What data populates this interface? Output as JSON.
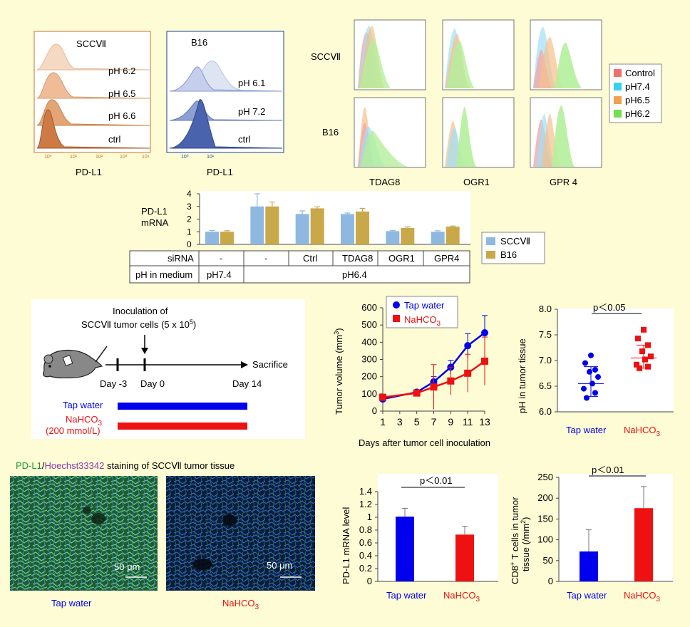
{
  "flow_left": {
    "sccvii": {
      "title": "SCCⅦ",
      "rows": [
        "pH 6.2",
        "pH 6.5",
        "pH 6.6",
        "ctrl"
      ],
      "xlabel": "PD-L1",
      "ticks": [
        "10⁰",
        "10¹",
        "10²",
        "10³",
        "10⁴"
      ]
    },
    "b16": {
      "title": "B16",
      "rows": [
        "pH 6.1",
        "pH 7.2",
        "ctrl"
      ],
      "xlabel": "PD-L1",
      "ticks": [
        "10⁰",
        "10¹"
      ]
    }
  },
  "receptor_flow": {
    "row_labels": [
      "SCCⅦ",
      "B16"
    ],
    "col_labels": [
      "TDAG8",
      "OGR1",
      "GPR 4"
    ],
    "legend": [
      {
        "label": "Control",
        "color": "#f07070"
      },
      {
        "label": "pH7.4",
        "color": "#38d0f0"
      },
      {
        "label": "pH6.5",
        "color": "#f0a050"
      },
      {
        "label": "pH6.2",
        "color": "#70e050"
      }
    ]
  },
  "mrna_chart": {
    "chart_data": {
      "type": "bar",
      "ylabel": "PD-L1 mRNA",
      "ylim": [
        0,
        4
      ],
      "yticks": [
        "0",
        "1",
        "2",
        "3",
        "4"
      ],
      "categories": [
        "-",
        "-",
        "Ctrl",
        "TDAG8",
        "OGR1",
        "GPR4"
      ],
      "series": [
        {
          "name": "SCCⅦ",
          "color": "#8fb8e0",
          "values": [
            1.0,
            3.0,
            2.4,
            2.4,
            1.05,
            1.0
          ],
          "errors": [
            0.1,
            1.0,
            0.25,
            0.08,
            0.05,
            0.08
          ]
        },
        {
          "name": "B16",
          "color": "#c9a84a",
          "values": [
            1.0,
            3.0,
            2.85,
            2.6,
            1.3,
            1.4
          ],
          "errors": [
            0.08,
            0.35,
            0.12,
            0.25,
            0.08,
            0.05
          ]
        }
      ]
    },
    "table": {
      "row1_label": "siRNA",
      "row2_label": "pH in medium",
      "ph74": "pH7.4",
      "ph64": "pH6.4"
    }
  },
  "timeline": {
    "inoculation": "Inoculation of",
    "cells_main": "SCCⅦ tumor cells (5 x 10",
    "cells_sup": "5",
    "cells_end": ")",
    "sacrifice": "Sacrifice",
    "days": [
      "Day -3",
      "Day 0",
      "Day 14"
    ],
    "tap_water": "Tap water",
    "nahco3_main": "NaHCO",
    "nahco3_sub": "3",
    "concentration": "(200 mmol/L)"
  },
  "tumor_chart": {
    "chart_data": {
      "type": "line",
      "x": [
        1,
        5,
        7,
        9,
        11,
        13
      ],
      "xticks": [
        "1",
        "3",
        "5",
        "7",
        "9",
        "11",
        "13"
      ],
      "yticks": [
        "0",
        "100",
        "200",
        "300",
        "400",
        "500",
        "600"
      ],
      "ylim": [
        0,
        600
      ],
      "xlabel": "Days after tumor cell inoculation",
      "ylabel_main": "Tumor volume (mm",
      "ylabel_sup": "3",
      "ylabel_end": ")",
      "series": [
        {
          "name": "Tap water",
          "color": "#0000ee",
          "values": [
            70,
            110,
            170,
            255,
            380,
            455
          ],
          "errors": [
            5,
            10,
            30,
            40,
            70,
            100
          ]
        },
        {
          "name": "NaHCO3",
          "color": "#ee1111",
          "values": [
            80,
            105,
            140,
            175,
            220,
            290
          ],
          "errors": [
            5,
            15,
            130,
            80,
            110,
            140
          ]
        }
      ]
    },
    "legend_tap": "Tap water",
    "legend_nahco3_main": "NaHCO",
    "legend_nahco3_sub": "3"
  },
  "ph_chart": {
    "chart_data": {
      "type": "scatter",
      "ylabel": "pH in tumor tissue",
      "ylim": [
        6.0,
        8.0
      ],
      "yticks": [
        "6.0",
        "6.5",
        "7.0",
        "7.5",
        "8.0"
      ],
      "series": [
        {
          "name": "Tap water",
          "color": "#0000ee",
          "values": [
            6.27,
            6.37,
            6.45,
            6.55,
            6.68,
            6.78,
            6.82,
            6.95,
            7.1
          ],
          "mean": 6.55,
          "sd_upper": 6.88,
          "sd_lower": 6.3
        },
        {
          "name": "NaHCO3",
          "color": "#ee1111",
          "values": [
            6.85,
            6.88,
            6.92,
            7.02,
            7.08,
            7.18,
            7.3,
            7.43,
            7.6
          ],
          "mean": 7.05,
          "sd_upper": 7.3,
          "sd_lower": 6.85
        }
      ]
    },
    "pvalue": "p＜0.05",
    "label_tap": "Tap water",
    "label_nahco3_main": "NaHCO",
    "label_nahco3_sub": "3"
  },
  "staining": {
    "title_pdl1": "PD-L1",
    "title_slash": "/",
    "title_hoechst": "Hoechst33342",
    "title_rest": " staining of SCCⅦ tumor tissue",
    "scale": "50 μm",
    "label_tap": "Tap water",
    "label_nahco3_main": "NaHCO",
    "label_nahco3_sub": "3"
  },
  "pdl1_bar": {
    "chart_data": {
      "type": "bar",
      "ylabel": "PD-L1 mRNA level",
      "ylim": [
        0,
        1.4
      ],
      "yticks": [
        "0",
        "0.2",
        "0.4",
        "0.6",
        "0.8",
        "1",
        "1.2",
        "1.4"
      ],
      "categories": [
        "Tap water",
        "NaHCO3"
      ],
      "values": [
        1.01,
        0.73
      ],
      "errors": [
        0.13,
        0.13
      ],
      "colors": [
        "#0000ee",
        "#ee1111"
      ]
    },
    "pvalue": "p＜0.01",
    "label_tap": "Tap water",
    "label_nahco3_main": "NaHCO",
    "label_nahco3_sub": "3"
  },
  "cd8_bar": {
    "chart_data": {
      "type": "bar",
      "ylabel_line1_main": "CD8",
      "ylabel_line1_sup": "+",
      "ylabel_line1_end": " T cells in tumor",
      "ylabel_line2_main": "tissue (/mm",
      "ylabel_line2_sup": "2",
      "ylabel_line2_end": ")",
      "ylim": [
        0,
        250
      ],
      "yticks": [
        "0",
        "50",
        "100",
        "150",
        "200",
        "250"
      ],
      "categories": [
        "Tap water",
        "NaHCO3"
      ],
      "values": [
        72,
        176
      ],
      "errors": [
        52,
        52
      ],
      "colors": [
        "#0000ee",
        "#ee1111"
      ]
    },
    "pvalue": "p＜0.01",
    "label_tap": "Tap water",
    "label_nahco3_main": "NaHCO",
    "label_nahco3_sub": "3"
  }
}
